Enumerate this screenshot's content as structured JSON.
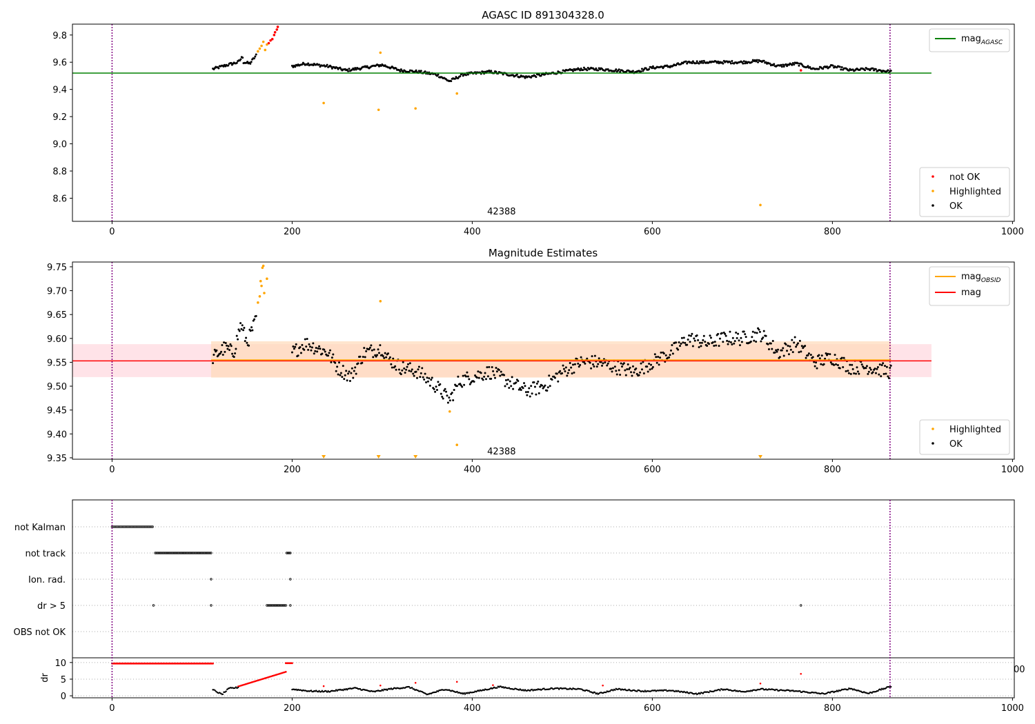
{
  "colors": {
    "ok": "#000000",
    "highlighted": "#ffa500",
    "not_ok": "#ff0000",
    "agasc_line": "#008000",
    "obsid_line": "#ffa500",
    "mag_line": "#ff0000",
    "vline": "#800080",
    "band_pink": "#ffc0cb",
    "band_orange": "#ffdab9"
  },
  "chart_data": [
    {
      "type": "scatter",
      "title": "AGASC ID 891304328.0",
      "xlim": [
        -44,
        1002
      ],
      "ylim": [
        8.43,
        9.88
      ],
      "xticks": [
        0,
        200,
        400,
        600,
        800,
        1000
      ],
      "yticks": [
        8.6,
        8.8,
        9.0,
        9.2,
        9.4,
        9.6,
        9.8
      ],
      "ytick_labels": [
        "8.6",
        "8.8",
        "9.0",
        "9.2",
        "9.4",
        "9.6",
        "9.8"
      ],
      "annotation": {
        "text": "42388",
        "x": 432,
        "y": 8.49
      },
      "hline": {
        "name": "mag_AGASC",
        "y": 9.52,
        "x_range": [
          -44,
          910
        ]
      },
      "vlines": [
        0,
        864
      ],
      "upper_legend": [
        {
          "label_main": "mag",
          "label_sub": "AGASC",
          "kind": "line",
          "color_key": "agasc_line"
        }
      ],
      "lower_legend": [
        {
          "label": "not OK",
          "color_key": "not_ok"
        },
        {
          "label": "Highlighted",
          "color_key": "highlighted"
        },
        {
          "label": "OK",
          "color_key": "ok"
        }
      ],
      "highlighted_points": [
        {
          "x": 162,
          "y": 9.68
        },
        {
          "x": 164,
          "y": 9.7
        },
        {
          "x": 166,
          "y": 9.72
        },
        {
          "x": 168,
          "y": 9.75
        },
        {
          "x": 170,
          "y": 9.69
        },
        {
          "x": 172,
          "y": 9.73
        },
        {
          "x": 235,
          "y": 9.3
        },
        {
          "x": 298,
          "y": 9.67
        },
        {
          "x": 296,
          "y": 9.25
        },
        {
          "x": 337,
          "y": 9.26
        },
        {
          "x": 383,
          "y": 9.37
        },
        {
          "x": 720,
          "y": 8.55
        }
      ],
      "not_ok_points": [
        {
          "x": 174,
          "y": 9.74
        },
        {
          "x": 176,
          "y": 9.76
        },
        {
          "x": 178,
          "y": 9.77
        },
        {
          "x": 180,
          "y": 9.8
        },
        {
          "x": 181,
          "y": 9.82
        },
        {
          "x": 183,
          "y": 9.84
        },
        {
          "x": 184,
          "y": 9.86
        },
        {
          "x": 765,
          "y": 9.54
        }
      ],
      "ok_segments": [
        {
          "x0": 112,
          "x1": 145,
          "n": 32,
          "nodes": [
            [
              112,
              9.55
            ],
            [
              128,
              9.58
            ],
            [
              140,
              9.6
            ],
            [
              145,
              9.64
            ]
          ]
        },
        {
          "x0": 146,
          "x1": 160,
          "n": 14,
          "nodes": [
            [
              146,
              9.6
            ],
            [
              153,
              9.59
            ],
            [
              160,
              9.65
            ]
          ]
        },
        {
          "x0": 200,
          "x1": 865,
          "n": 600,
          "nodes": [
            [
              200,
              9.57
            ],
            [
              215,
              9.59
            ],
            [
              240,
              9.57
            ],
            [
              260,
              9.54
            ],
            [
              280,
              9.56
            ],
            [
              300,
              9.58
            ],
            [
              320,
              9.54
            ],
            [
              340,
              9.53
            ],
            [
              360,
              9.51
            ],
            [
              375,
              9.46
            ],
            [
              390,
              9.51
            ],
            [
              420,
              9.53
            ],
            [
              440,
              9.51
            ],
            [
              460,
              9.49
            ],
            [
              480,
              9.51
            ],
            [
              500,
              9.53
            ],
            [
              520,
              9.55
            ],
            [
              540,
              9.55
            ],
            [
              560,
              9.54
            ],
            [
              580,
              9.53
            ],
            [
              600,
              9.56
            ],
            [
              620,
              9.57
            ],
            [
              640,
              9.6
            ],
            [
              660,
              9.6
            ],
            [
              680,
              9.6
            ],
            [
              700,
              9.6
            ],
            [
              720,
              9.61
            ],
            [
              740,
              9.57
            ],
            [
              760,
              9.59
            ],
            [
              780,
              9.55
            ],
            [
              800,
              9.57
            ],
            [
              820,
              9.54
            ],
            [
              840,
              9.55
            ],
            [
              865,
              9.53
            ]
          ]
        }
      ]
    },
    {
      "type": "scatter",
      "title": "Magnitude Estimates",
      "xlim": [
        -44,
        1002
      ],
      "ylim": [
        9.347,
        9.76
      ],
      "xticks": [
        0,
        200,
        400,
        600,
        800,
        1000
      ],
      "yticks": [
        9.35,
        9.4,
        9.45,
        9.5,
        9.55,
        9.6,
        9.65,
        9.7,
        9.75
      ],
      "ytick_labels": [
        "9.35",
        "9.40",
        "9.45",
        "9.50",
        "9.55",
        "9.60",
        "9.65",
        "9.70",
        "9.75"
      ],
      "annotation": {
        "text": "42388",
        "x": 432,
        "y": 9.36
      },
      "band_pink": {
        "y0": 9.519,
        "y1": 9.588,
        "x_range": [
          -44,
          910
        ]
      },
      "band_orange": {
        "y0": 9.518,
        "y1": 9.594,
        "x_range": [
          110,
          865
        ]
      },
      "hline_mag": {
        "y": 9.553,
        "x_range": [
          -44,
          910
        ]
      },
      "hline_obsid": {
        "y": 9.555,
        "x_range": [
          110,
          865
        ]
      },
      "vlines": [
        0,
        864
      ],
      "upper_legend": [
        {
          "label_main": "mag",
          "label_sub": "OBSID",
          "kind": "line",
          "color_key": "obsid_line"
        },
        {
          "label_main": "mag",
          "label_sub": "",
          "kind": "line",
          "color_key": "mag_line"
        }
      ],
      "lower_legend": [
        {
          "label": "Highlighted",
          "color_key": "highlighted"
        },
        {
          "label": "OK",
          "color_key": "ok"
        }
      ],
      "highlighted_points": [
        {
          "x": 162,
          "y": 9.675
        },
        {
          "x": 164,
          "y": 9.688
        },
        {
          "x": 165,
          "y": 9.72
        },
        {
          "x": 166,
          "y": 9.71
        },
        {
          "x": 167,
          "y": 9.748
        },
        {
          "x": 168,
          "y": 9.752
        },
        {
          "x": 169,
          "y": 9.695
        },
        {
          "x": 172,
          "y": 9.725
        },
        {
          "x": 298,
          "y": 9.678
        },
        {
          "x": 375,
          "y": 9.447
        },
        {
          "x": 383,
          "y": 9.377
        }
      ],
      "highlighted_markers": [
        235,
        296,
        337,
        720
      ],
      "ok_segments": [
        {
          "x0": 112,
          "x1": 160,
          "n": 48,
          "nodes": [
            [
              112,
              9.56
            ],
            [
              125,
              9.58
            ],
            [
              135,
              9.57
            ],
            [
              143,
              9.63
            ],
            [
              150,
              9.59
            ],
            [
              160,
              9.64
            ]
          ]
        },
        {
          "x0": 200,
          "x1": 865,
          "n": 600,
          "nodes": [
            [
              200,
              9.57
            ],
            [
              215,
              9.59
            ],
            [
              240,
              9.57
            ],
            [
              250,
              9.54
            ],
            [
              265,
              9.52
            ],
            [
              280,
              9.57
            ],
            [
              300,
              9.58
            ],
            [
              305,
              9.56
            ],
            [
              320,
              9.54
            ],
            [
              340,
              9.53
            ],
            [
              360,
              9.5
            ],
            [
              375,
              9.47
            ],
            [
              385,
              9.51
            ],
            [
              400,
              9.52
            ],
            [
              420,
              9.53
            ],
            [
              440,
              9.51
            ],
            [
              460,
              9.49
            ],
            [
              480,
              9.5
            ],
            [
              500,
              9.53
            ],
            [
              520,
              9.55
            ],
            [
              540,
              9.55
            ],
            [
              560,
              9.54
            ],
            [
              580,
              9.53
            ],
            [
              600,
              9.55
            ],
            [
              620,
              9.57
            ],
            [
              640,
              9.6
            ],
            [
              660,
              9.59
            ],
            [
              680,
              9.6
            ],
            [
              700,
              9.6
            ],
            [
              720,
              9.61
            ],
            [
              740,
              9.57
            ],
            [
              760,
              9.59
            ],
            [
              780,
              9.55
            ],
            [
              800,
              9.56
            ],
            [
              820,
              9.54
            ],
            [
              840,
              9.54
            ],
            [
              865,
              9.53
            ]
          ]
        }
      ]
    },
    {
      "type": "scatter",
      "xlim": [
        -44,
        1002
      ],
      "flag_rows": [
        "not Kalman",
        "not track",
        "Ion. rad.",
        "dr > 5",
        "OBS not OK"
      ],
      "flag_points": {
        "not Kalman": [
          {
            "x0": 0,
            "x1": 45,
            "n": 30
          }
        ],
        "not track": [
          {
            "x0": 48,
            "x1": 110,
            "n": 45
          },
          {
            "x0": 194,
            "x1": 198,
            "n": 4
          }
        ],
        "Ion. rad.": [
          {
            "x0": 110,
            "x1": 110,
            "n": 1
          },
          {
            "x0": 198,
            "x1": 198,
            "n": 1
          }
        ],
        "dr > 5": [
          {
            "x0": 46,
            "x1": 46,
            "n": 1
          },
          {
            "x0": 110,
            "x1": 110,
            "n": 1
          },
          {
            "x0": 172,
            "x1": 193,
            "n": 16
          },
          {
            "x0": 198,
            "x1": 198,
            "n": 1
          },
          {
            "x0": 765,
            "x1": 765,
            "n": 1
          }
        ],
        "OBS not OK": []
      },
      "dr_plot": {
        "ylabel": "dr",
        "ylim": [
          -0.6,
          11
        ],
        "yticks": [
          0,
          5,
          10
        ],
        "ytick_labels": [
          "0",
          "5",
          "10"
        ],
        "xticks": [
          0,
          200,
          400,
          600,
          800,
          1000
        ],
        "clipped_label": "00",
        "red_top": [
          {
            "x0": 0,
            "x1": 112,
            "n": 90,
            "y": 9.7
          },
          {
            "x0": 193,
            "x1": 200,
            "n": 6,
            "y": 9.8
          }
        ],
        "red_ramp": {
          "x0": 140,
          "x1": 193,
          "n": 40,
          "y0": 2.8,
          "y1": 7.2
        },
        "red_scatter": [
          {
            "x": 235,
            "y": 2.9
          },
          {
            "x": 298,
            "y": 3.1
          },
          {
            "x": 337,
            "y": 3.9
          },
          {
            "x": 383,
            "y": 4.2
          },
          {
            "x": 423,
            "y": 3.2
          },
          {
            "x": 545,
            "y": 3.1
          },
          {
            "x": 720,
            "y": 3.7
          },
          {
            "x": 765,
            "y": 6.6
          }
        ],
        "black_segments": [
          {
            "x0": 112,
            "x1": 140,
            "n": 24,
            "nodes": [
              [
                112,
                1.8
              ],
              [
                122,
                0.4
              ],
              [
                130,
                2.2
              ],
              [
                140,
                2.5
              ]
            ]
          },
          {
            "x0": 200,
            "x1": 865,
            "n": 600,
            "nodes": [
              [
                200,
                2.0
              ],
              [
                220,
                1.4
              ],
              [
                240,
                1.3
              ],
              [
                270,
                2.3
              ],
              [
                290,
                1.2
              ],
              [
                310,
                2.1
              ],
              [
                330,
                2.6
              ],
              [
                350,
                0.4
              ],
              [
                370,
                2.0
              ],
              [
                390,
                0.6
              ],
              [
                410,
                1.6
              ],
              [
                430,
                2.7
              ],
              [
                460,
                1.6
              ],
              [
                490,
                2.2
              ],
              [
                520,
                2.0
              ],
              [
                540,
                0.6
              ],
              [
                560,
                2.0
              ],
              [
                590,
                1.4
              ],
              [
                620,
                1.6
              ],
              [
                650,
                0.6
              ],
              [
                680,
                2.0
              ],
              [
                700,
                1.2
              ],
              [
                720,
                2.0
              ],
              [
                760,
                1.4
              ],
              [
                790,
                0.6
              ],
              [
                820,
                2.2
              ],
              [
                840,
                0.7
              ],
              [
                865,
                2.8
              ]
            ]
          }
        ]
      }
    }
  ]
}
